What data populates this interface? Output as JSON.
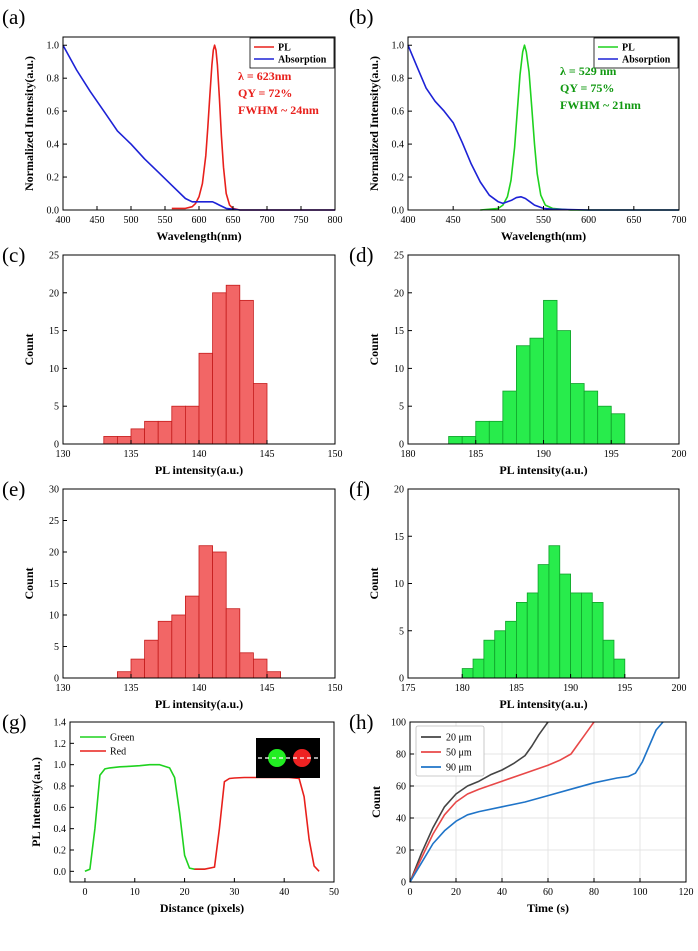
{
  "figure": {
    "description": "Multi-panel scientific figure"
  },
  "chart_data": [
    {
      "id": "a",
      "panel_label": "(a)",
      "type": "line",
      "xlabel": "Wavelength(nm)",
      "ylabel": "Normalized Intensity(a.u.)",
      "xlim": [
        400,
        800
      ],
      "ylim": [
        0,
        1.05
      ],
      "xticks": [
        400,
        450,
        500,
        550,
        600,
        650,
        700,
        750,
        800
      ],
      "yticks": [
        0.0,
        0.2,
        0.4,
        0.6,
        0.8,
        1.0
      ],
      "ytick_labels": [
        "0.0",
        "0.2",
        "0.4",
        "0.6",
        "0.8",
        "1.0"
      ],
      "legend": {
        "position": "top-right",
        "entries": [
          {
            "name": "PL",
            "color": "#e8201c"
          },
          {
            "name": "Absorption",
            "color": "#1d22d6"
          }
        ]
      },
      "annotations": [
        {
          "text": "λ = 623nm",
          "color": "#e8201c"
        },
        {
          "text": "QY = 72%",
          "color": "#e8201c"
        },
        {
          "text": "FWHM ~ 24nm",
          "color": "#e8201c"
        }
      ],
      "series": [
        {
          "name": "PL",
          "color": "#e8201c",
          "x": [
            560,
            580,
            590,
            595,
            600,
            605,
            610,
            613,
            616,
            619,
            621,
            623,
            625,
            627,
            630,
            633,
            636,
            640,
            645,
            650,
            660,
            680,
            700,
            750,
            800
          ],
          "y": [
            0.01,
            0.01,
            0.02,
            0.04,
            0.08,
            0.16,
            0.33,
            0.5,
            0.7,
            0.88,
            0.97,
            1.0,
            0.97,
            0.88,
            0.68,
            0.45,
            0.26,
            0.1,
            0.03,
            0.01,
            0.0,
            0.0,
            0.0,
            0.0,
            0.0
          ]
        },
        {
          "name": "Absorption",
          "color": "#1d22d6",
          "x": [
            400,
            420,
            440,
            460,
            480,
            500,
            520,
            540,
            560,
            580,
            590,
            600,
            610,
            620,
            625,
            630,
            640,
            650,
            660,
            700,
            750,
            800
          ],
          "y": [
            1.0,
            0.85,
            0.72,
            0.6,
            0.48,
            0.4,
            0.31,
            0.23,
            0.15,
            0.07,
            0.05,
            0.05,
            0.05,
            0.05,
            0.04,
            0.03,
            0.01,
            0.005,
            0.0,
            0.0,
            0.0,
            0.0
          ]
        }
      ]
    },
    {
      "id": "b",
      "panel_label": "(b)",
      "type": "line",
      "xlabel": "Wavelength(nm)",
      "ylabel": "Normalized Intensity(a.u.)",
      "xlim": [
        400,
        700
      ],
      "ylim": [
        0,
        1.05
      ],
      "xticks": [
        400,
        450,
        500,
        550,
        600,
        650,
        700
      ],
      "yticks": [
        0.0,
        0.2,
        0.4,
        0.6,
        0.8,
        1.0
      ],
      "ytick_labels": [
        "0.0",
        "0.2",
        "0.4",
        "0.6",
        "0.8",
        "1.0"
      ],
      "legend": {
        "position": "top-right",
        "entries": [
          {
            "name": "PL",
            "color": "#1fd21f"
          },
          {
            "name": "Absorption",
            "color": "#1d22d6"
          }
        ]
      },
      "annotations": [
        {
          "text": "λ = 529 nm",
          "color": "#119911"
        },
        {
          "text": "QY = 75%",
          "color": "#119911"
        },
        {
          "text": "FWHM ~ 21nm",
          "color": "#119911"
        }
      ],
      "series": [
        {
          "name": "PL",
          "color": "#1fd21f",
          "x": [
            480,
            500,
            505,
            510,
            514,
            518,
            521,
            524,
            527,
            529,
            531,
            534,
            537,
            540,
            543,
            547,
            552,
            560,
            580,
            620,
            700
          ],
          "y": [
            0.0,
            0.01,
            0.03,
            0.08,
            0.18,
            0.38,
            0.6,
            0.82,
            0.96,
            1.0,
            0.96,
            0.84,
            0.62,
            0.4,
            0.22,
            0.09,
            0.03,
            0.01,
            0.0,
            0.0,
            0.0
          ]
        },
        {
          "name": "Absorption",
          "color": "#1d22d6",
          "x": [
            400,
            410,
            420,
            430,
            440,
            450,
            460,
            470,
            480,
            490,
            500,
            505,
            510,
            515,
            520,
            525,
            530,
            535,
            540,
            550,
            560,
            600,
            650,
            700
          ],
          "y": [
            1.0,
            0.87,
            0.74,
            0.66,
            0.6,
            0.53,
            0.41,
            0.28,
            0.17,
            0.09,
            0.05,
            0.04,
            0.05,
            0.06,
            0.075,
            0.08,
            0.07,
            0.05,
            0.03,
            0.01,
            0.005,
            0.0,
            0.0,
            0.0
          ]
        }
      ]
    },
    {
      "id": "c",
      "panel_label": "(c)",
      "type": "bar",
      "xlabel": "PL intensity(a.u.)",
      "ylabel": "Count",
      "xlim": [
        130,
        150
      ],
      "ylim": [
        0,
        25
      ],
      "xticks": [
        130,
        135,
        140,
        145,
        150
      ],
      "yticks": [
        0,
        5,
        10,
        15,
        20,
        25
      ],
      "bin_width": 1,
      "fill": "#f26666",
      "stroke": "#c41c1c",
      "bin_starts": [
        133,
        134,
        135,
        136,
        137,
        138,
        139,
        140,
        141,
        142,
        143,
        144
      ],
      "values": [
        1,
        1,
        2,
        3,
        3,
        5,
        5,
        12,
        20,
        21,
        19,
        8
      ]
    },
    {
      "id": "d",
      "panel_label": "(d)",
      "type": "bar",
      "xlabel": "PL intensity(a.u.)",
      "ylabel": "Count",
      "xlim": [
        180,
        200
      ],
      "ylim": [
        0,
        25
      ],
      "xticks": [
        180,
        185,
        190,
        195,
        200
      ],
      "yticks": [
        0,
        5,
        10,
        15,
        20,
        25
      ],
      "bin_width": 1,
      "fill": "#28ec4c",
      "stroke": "#0fa02a",
      "bin_starts": [
        183,
        184,
        185,
        186,
        187,
        188,
        189,
        190,
        191,
        192,
        193,
        194,
        195
      ],
      "values": [
        1,
        1,
        3,
        3,
        7,
        13,
        14,
        19,
        15,
        8,
        7,
        5,
        4
      ]
    },
    {
      "id": "e",
      "panel_label": "(e)",
      "type": "bar",
      "xlabel": "PL intensity(a.u.)",
      "ylabel": "Count",
      "xlim": [
        130,
        150
      ],
      "ylim": [
        0,
        30
      ],
      "xticks": [
        130,
        135,
        140,
        145,
        150
      ],
      "yticks": [
        0,
        5,
        10,
        15,
        20,
        25,
        30
      ],
      "bin_width": 1,
      "fill": "#f26666",
      "stroke": "#c41c1c",
      "bin_starts": [
        134,
        135,
        136,
        137,
        138,
        139,
        140,
        141,
        142,
        143,
        144,
        145
      ],
      "values": [
        1,
        3,
        6,
        9,
        10,
        13,
        21,
        20,
        11,
        4,
        3,
        1
      ]
    },
    {
      "id": "f",
      "panel_label": "(f)",
      "type": "bar",
      "xlabel": "PL intensity(a.u.)",
      "ylabel": "Count",
      "xlim": [
        175,
        200
      ],
      "ylim": [
        0,
        20
      ],
      "xticks": [
        175,
        180,
        185,
        190,
        195,
        200
      ],
      "yticks": [
        0,
        5,
        10,
        15,
        20
      ],
      "bin_width": 1,
      "fill": "#28ec4c",
      "stroke": "#0fa02a",
      "bin_starts": [
        180,
        181,
        182,
        183,
        184,
        185,
        186,
        187,
        188,
        189,
        190,
        191,
        192,
        193,
        194
      ],
      "values": [
        1,
        2,
        4,
        5,
        6,
        8,
        9,
        12,
        14,
        11,
        9,
        9,
        8,
        4,
        2
      ]
    },
    {
      "id": "g",
      "panel_label": "(g)",
      "type": "line",
      "xlabel": "Distance (pixels)",
      "ylabel": "PL Intensity(a.u.)",
      "xlim": [
        -3,
        50
      ],
      "ylim": [
        -0.1,
        1.4
      ],
      "xticks": [
        0,
        10,
        20,
        30,
        40,
        50
      ],
      "yticks": [
        0.0,
        0.2,
        0.4,
        0.6,
        0.8,
        1.0,
        1.2,
        1.4
      ],
      "ytick_labels": [
        "0.0",
        "0.2",
        "0.4",
        "0.6",
        "0.8",
        "1.0",
        "1.2",
        "1.4"
      ],
      "legend": {
        "position": "top-left",
        "entries": [
          {
            "name": "Green",
            "color": "#1fd21f"
          },
          {
            "name": "Red",
            "color": "#e8201c"
          }
        ]
      },
      "series": [
        {
          "name": "Green",
          "color": "#1fd21f",
          "x": [
            0,
            1,
            2,
            3,
            4,
            5,
            7,
            9,
            11,
            13,
            15,
            17,
            18,
            19,
            20,
            21,
            22,
            24
          ],
          "y": [
            0.0,
            0.02,
            0.4,
            0.9,
            0.96,
            0.97,
            0.98,
            0.985,
            0.99,
            1.0,
            1.0,
            0.97,
            0.88,
            0.55,
            0.15,
            0.03,
            0.02,
            0.02
          ]
        },
        {
          "name": "Red",
          "color": "#e8201c",
          "x": [
            22,
            24,
            26,
            27,
            28,
            29,
            30,
            32,
            35,
            38,
            41,
            43,
            44,
            45,
            46,
            47
          ],
          "y": [
            0.02,
            0.02,
            0.04,
            0.4,
            0.84,
            0.87,
            0.875,
            0.88,
            0.88,
            0.88,
            0.88,
            0.87,
            0.7,
            0.3,
            0.05,
            0.0
          ]
        }
      ]
    },
    {
      "id": "h",
      "panel_label": "(h)",
      "type": "line",
      "xlabel": "Time (s)",
      "ylabel": "Count",
      "xlim": [
        0,
        120
      ],
      "ylim": [
        0,
        100
      ],
      "xticks": [
        0,
        20,
        40,
        60,
        80,
        100,
        120
      ],
      "yticks": [
        0,
        20,
        40,
        60,
        80,
        100
      ],
      "grid": true,
      "legend": {
        "position": "top-left",
        "entries": [
          {
            "name": "20 μm",
            "color": "#444444"
          },
          {
            "name": "50 μm",
            "color": "#e84848"
          },
          {
            "name": "90 μm",
            "color": "#1f74c8"
          }
        ]
      },
      "series": [
        {
          "name": "20 μm",
          "color": "#444444",
          "x": [
            0,
            5,
            10,
            15,
            20,
            25,
            30,
            35,
            40,
            45,
            50,
            53,
            56,
            59,
            60
          ],
          "y": [
            0,
            18,
            34,
            47,
            55,
            60,
            63,
            67,
            70,
            74,
            79,
            85,
            92,
            98,
            100
          ]
        },
        {
          "name": "50 μm",
          "color": "#e84848",
          "x": [
            0,
            5,
            10,
            15,
            20,
            25,
            30,
            40,
            50,
            60,
            65,
            70,
            73,
            76,
            79,
            80
          ],
          "y": [
            0,
            15,
            30,
            42,
            50,
            55,
            58,
            63,
            68,
            73,
            76,
            80,
            86,
            92,
            98,
            100
          ]
        },
        {
          "name": "90 μm",
          "color": "#1f74c8",
          "x": [
            0,
            5,
            10,
            15,
            20,
            25,
            30,
            40,
            50,
            60,
            70,
            80,
            90,
            95,
            98,
            101,
            104,
            107,
            110
          ],
          "y": [
            0,
            12,
            24,
            32,
            38,
            42,
            44,
            47,
            50,
            54,
            58,
            62,
            65,
            66,
            68,
            75,
            85,
            95,
            100
          ]
        }
      ]
    }
  ]
}
